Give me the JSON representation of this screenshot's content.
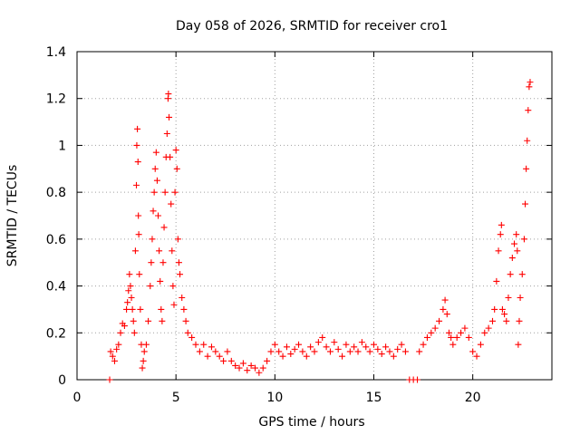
{
  "chart_data": {
    "type": "scatter",
    "title": "Day 058 of 2026, SRMTID for receiver cro1",
    "xlabel": "GPS time / hours",
    "ylabel": "SRMTID / TECUs",
    "xlim": [
      0,
      24
    ],
    "ylim": [
      0,
      1.4
    ],
    "grid": true,
    "marker": "+",
    "color": "#ff0000",
    "x_ticks": [
      0,
      5,
      10,
      15,
      20
    ],
    "x_tick_labels": [
      "0",
      "5",
      "10",
      "15",
      "20"
    ],
    "y_ticks": [
      0,
      0.2,
      0.4,
      0.6,
      0.8,
      1.0,
      1.2,
      1.4
    ],
    "y_tick_labels": [
      "0",
      "0.2",
      "0.4",
      "0.6",
      "0.8",
      "1",
      "1.2",
      "1.4"
    ],
    "series": [
      {
        "name": "SRMTID",
        "points": [
          [
            1.65,
            0.0
          ],
          [
            1.7,
            0.12
          ],
          [
            1.8,
            0.1
          ],
          [
            1.9,
            0.08
          ],
          [
            2.0,
            0.13
          ],
          [
            2.1,
            0.15
          ],
          [
            2.2,
            0.2
          ],
          [
            2.3,
            0.24
          ],
          [
            2.4,
            0.23
          ],
          [
            2.5,
            0.3
          ],
          [
            2.55,
            0.33
          ],
          [
            2.6,
            0.38
          ],
          [
            2.65,
            0.45
          ],
          [
            2.7,
            0.4
          ],
          [
            2.75,
            0.35
          ],
          [
            2.8,
            0.3
          ],
          [
            2.85,
            0.25
          ],
          [
            2.9,
            0.2
          ],
          [
            2.95,
            0.55
          ],
          [
            3.0,
            0.83
          ],
          [
            3.02,
            1.0
          ],
          [
            3.05,
            1.07
          ],
          [
            3.08,
            0.93
          ],
          [
            3.1,
            0.7
          ],
          [
            3.12,
            0.62
          ],
          [
            3.15,
            0.45
          ],
          [
            3.2,
            0.3
          ],
          [
            3.25,
            0.15
          ],
          [
            3.3,
            0.05
          ],
          [
            3.35,
            0.08
          ],
          [
            3.4,
            0.12
          ],
          [
            3.5,
            0.15
          ],
          [
            3.6,
            0.25
          ],
          [
            3.7,
            0.4
          ],
          [
            3.75,
            0.5
          ],
          [
            3.8,
            0.6
          ],
          [
            3.85,
            0.72
          ],
          [
            3.9,
            0.8
          ],
          [
            3.95,
            0.9
          ],
          [
            4.0,
            0.97
          ],
          [
            4.05,
            0.85
          ],
          [
            4.1,
            0.7
          ],
          [
            4.15,
            0.55
          ],
          [
            4.2,
            0.42
          ],
          [
            4.25,
            0.3
          ],
          [
            4.3,
            0.25
          ],
          [
            4.35,
            0.5
          ],
          [
            4.4,
            0.65
          ],
          [
            4.45,
            0.8
          ],
          [
            4.5,
            0.95
          ],
          [
            4.55,
            1.05
          ],
          [
            4.6,
            1.2
          ],
          [
            4.62,
            1.22
          ],
          [
            4.65,
            1.12
          ],
          [
            4.7,
            0.95
          ],
          [
            4.75,
            0.75
          ],
          [
            4.8,
            0.55
          ],
          [
            4.85,
            0.4
          ],
          [
            4.9,
            0.32
          ],
          [
            4.95,
            0.8
          ],
          [
            5.0,
            0.98
          ],
          [
            5.05,
            0.9
          ],
          [
            5.1,
            0.6
          ],
          [
            5.15,
            0.5
          ],
          [
            5.2,
            0.45
          ],
          [
            5.3,
            0.35
          ],
          [
            5.4,
            0.3
          ],
          [
            5.5,
            0.25
          ],
          [
            5.6,
            0.2
          ],
          [
            5.8,
            0.18
          ],
          [
            6.0,
            0.15
          ],
          [
            6.2,
            0.12
          ],
          [
            6.4,
            0.15
          ],
          [
            6.6,
            0.1
          ],
          [
            6.8,
            0.14
          ],
          [
            7.0,
            0.12
          ],
          [
            7.2,
            0.1
          ],
          [
            7.4,
            0.08
          ],
          [
            7.6,
            0.12
          ],
          [
            7.8,
            0.08
          ],
          [
            8.0,
            0.06
          ],
          [
            8.2,
            0.05
          ],
          [
            8.4,
            0.07
          ],
          [
            8.6,
            0.04
          ],
          [
            8.8,
            0.06
          ],
          [
            9.0,
            0.05
          ],
          [
            9.2,
            0.03
          ],
          [
            9.4,
            0.05
          ],
          [
            9.6,
            0.08
          ],
          [
            9.8,
            0.12
          ],
          [
            10.0,
            0.15
          ],
          [
            10.2,
            0.12
          ],
          [
            10.4,
            0.1
          ],
          [
            10.6,
            0.14
          ],
          [
            10.8,
            0.11
          ],
          [
            11.0,
            0.13
          ],
          [
            11.2,
            0.15
          ],
          [
            11.4,
            0.12
          ],
          [
            11.6,
            0.1
          ],
          [
            11.8,
            0.14
          ],
          [
            12.0,
            0.12
          ],
          [
            12.2,
            0.16
          ],
          [
            12.4,
            0.18
          ],
          [
            12.6,
            0.14
          ],
          [
            12.8,
            0.12
          ],
          [
            13.0,
            0.16
          ],
          [
            13.2,
            0.13
          ],
          [
            13.4,
            0.1
          ],
          [
            13.6,
            0.15
          ],
          [
            13.8,
            0.12
          ],
          [
            14.0,
            0.14
          ],
          [
            14.2,
            0.12
          ],
          [
            14.4,
            0.16
          ],
          [
            14.6,
            0.14
          ],
          [
            14.8,
            0.12
          ],
          [
            15.0,
            0.15
          ],
          [
            15.2,
            0.13
          ],
          [
            15.4,
            0.11
          ],
          [
            15.6,
            0.14
          ],
          [
            15.8,
            0.12
          ],
          [
            16.0,
            0.1
          ],
          [
            16.2,
            0.13
          ],
          [
            16.4,
            0.15
          ],
          [
            16.6,
            0.12
          ],
          [
            16.8,
            0.0
          ],
          [
            17.0,
            0.0
          ],
          [
            17.2,
            0.0
          ],
          [
            17.3,
            0.12
          ],
          [
            17.5,
            0.15
          ],
          [
            17.7,
            0.18
          ],
          [
            17.9,
            0.2
          ],
          [
            18.1,
            0.22
          ],
          [
            18.3,
            0.25
          ],
          [
            18.5,
            0.3
          ],
          [
            18.6,
            0.34
          ],
          [
            18.7,
            0.28
          ],
          [
            18.8,
            0.2
          ],
          [
            18.9,
            0.18
          ],
          [
            19.0,
            0.15
          ],
          [
            19.2,
            0.18
          ],
          [
            19.4,
            0.2
          ],
          [
            19.6,
            0.22
          ],
          [
            19.8,
            0.18
          ],
          [
            20.0,
            0.12
          ],
          [
            20.2,
            0.1
          ],
          [
            20.4,
            0.15
          ],
          [
            20.6,
            0.2
          ],
          [
            20.8,
            0.22
          ],
          [
            21.0,
            0.25
          ],
          [
            21.1,
            0.3
          ],
          [
            21.2,
            0.42
          ],
          [
            21.3,
            0.55
          ],
          [
            21.4,
            0.62
          ],
          [
            21.45,
            0.66
          ],
          [
            21.5,
            0.3
          ],
          [
            21.6,
            0.28
          ],
          [
            21.7,
            0.25
          ],
          [
            21.8,
            0.35
          ],
          [
            21.9,
            0.45
          ],
          [
            22.0,
            0.52
          ],
          [
            22.1,
            0.58
          ],
          [
            22.2,
            0.62
          ],
          [
            22.25,
            0.55
          ],
          [
            22.3,
            0.15
          ],
          [
            22.35,
            0.25
          ],
          [
            22.4,
            0.35
          ],
          [
            22.5,
            0.45
          ],
          [
            22.6,
            0.6
          ],
          [
            22.65,
            0.75
          ],
          [
            22.7,
            0.9
          ],
          [
            22.75,
            1.02
          ],
          [
            22.8,
            1.15
          ],
          [
            22.85,
            1.25
          ],
          [
            22.9,
            1.27
          ]
        ]
      }
    ]
  }
}
